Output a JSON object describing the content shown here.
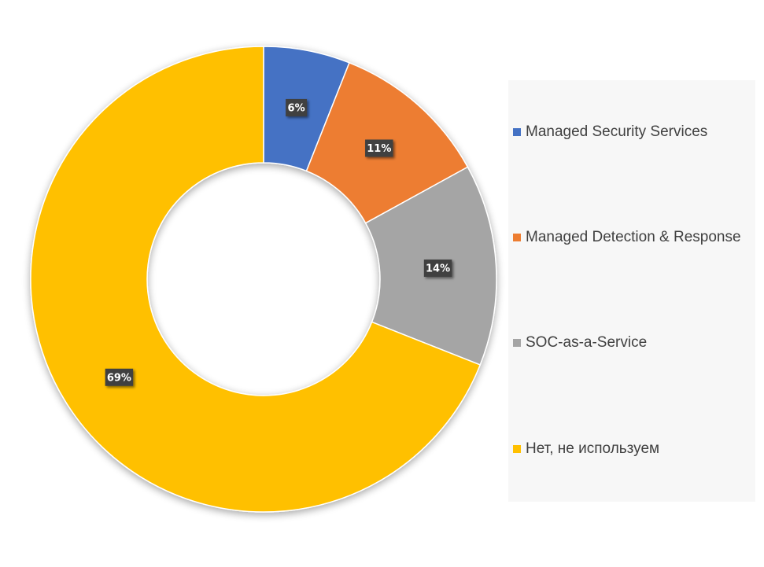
{
  "chart_data": {
    "type": "pie",
    "variant": "donut",
    "categories": [
      "Managed Security Services",
      "Managed Detection & Response",
      "SOC-as-a-Service",
      "Нет, не используем"
    ],
    "values": [
      6,
      11,
      14,
      69
    ],
    "data_labels": [
      "6%",
      "11%",
      "14%",
      "69%"
    ],
    "colors": [
      "#4472c4",
      "#ed7d31",
      "#a5a5a5",
      "#ffc000"
    ],
    "title": "",
    "legend_position": "right",
    "start_angle": "top",
    "direction": "clockwise"
  }
}
